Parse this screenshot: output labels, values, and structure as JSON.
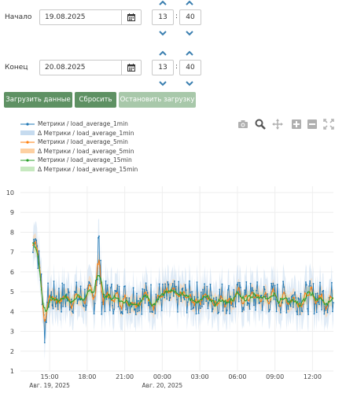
{
  "form": {
    "start_label": "Начало",
    "start_date": "19.08.2025",
    "start_hour": "13",
    "start_minute": "40",
    "end_label": "Конец",
    "end_date": "20.08.2025",
    "end_hour": "13",
    "end_minute": "40",
    "colon": ":"
  },
  "buttons": {
    "load": "Загрузить данные",
    "reset": "Сбросить",
    "stop": "Остановить загрузку"
  },
  "colors": {
    "button_primary": "#5e9163",
    "button_disabled": "#a8c8aa",
    "chevron": "#3b7fb0",
    "series_1min": "#1f77b4",
    "band_1min": "#c6dbef",
    "series_5min": "#ff7f0e",
    "band_5min": "#fdd0a2",
    "series_15min": "#2ca02c",
    "band_15min": "#c7e9c0"
  },
  "modebar": [
    "camera-icon",
    "zoom-icon",
    "pan-icon",
    "zoom-in-icon",
    "zoom-out-icon",
    "autoscale-icon"
  ],
  "chart_data": {
    "type": "line",
    "legend_position": "top-left",
    "grid": true,
    "ylim": [
      1,
      10
    ],
    "y_ticks": [
      "1",
      "2",
      "3",
      "4",
      "5",
      "6",
      "7",
      "8",
      "9",
      "10"
    ],
    "x_ticks": [
      {
        "label": "15:00",
        "sub": "Авг. 19, 2025",
        "hour": 15
      },
      {
        "label": "18:00",
        "sub": "",
        "hour": 18
      },
      {
        "label": "21:00",
        "sub": "",
        "hour": 21
      },
      {
        "label": "00:00",
        "sub": "Авг. 20, 2025",
        "hour": 24
      },
      {
        "label": "03:00",
        "sub": "",
        "hour": 27
      },
      {
        "label": "06:00",
        "sub": "",
        "hour": 30
      },
      {
        "label": "09:00",
        "sub": "",
        "hour": 33
      },
      {
        "label": "12:00",
        "sub": "",
        "hour": 36
      }
    ],
    "x_range_hours": [
      12.67,
      37.67
    ],
    "data_range_hours": [
      13.67,
      37.67
    ],
    "series": [
      {
        "name": "Метрики / load_average_1min",
        "band_name": "Δ Метрики / load_average_1min",
        "mean": 4.7,
        "noise": 0.85
      },
      {
        "name": "Метрики / load_average_5min",
        "band_name": "Δ Метрики / load_average_5min",
        "mean": 4.7,
        "noise": 0.4
      },
      {
        "name": "Метрики / load_average_15min",
        "band_name": "Δ Метрики / load_average_15min",
        "mean": 4.7,
        "noise": 0.2
      }
    ],
    "features": {
      "initial_peak": 8.4,
      "initial_dip": 2.1,
      "secondary_peak": 7.5
    }
  }
}
